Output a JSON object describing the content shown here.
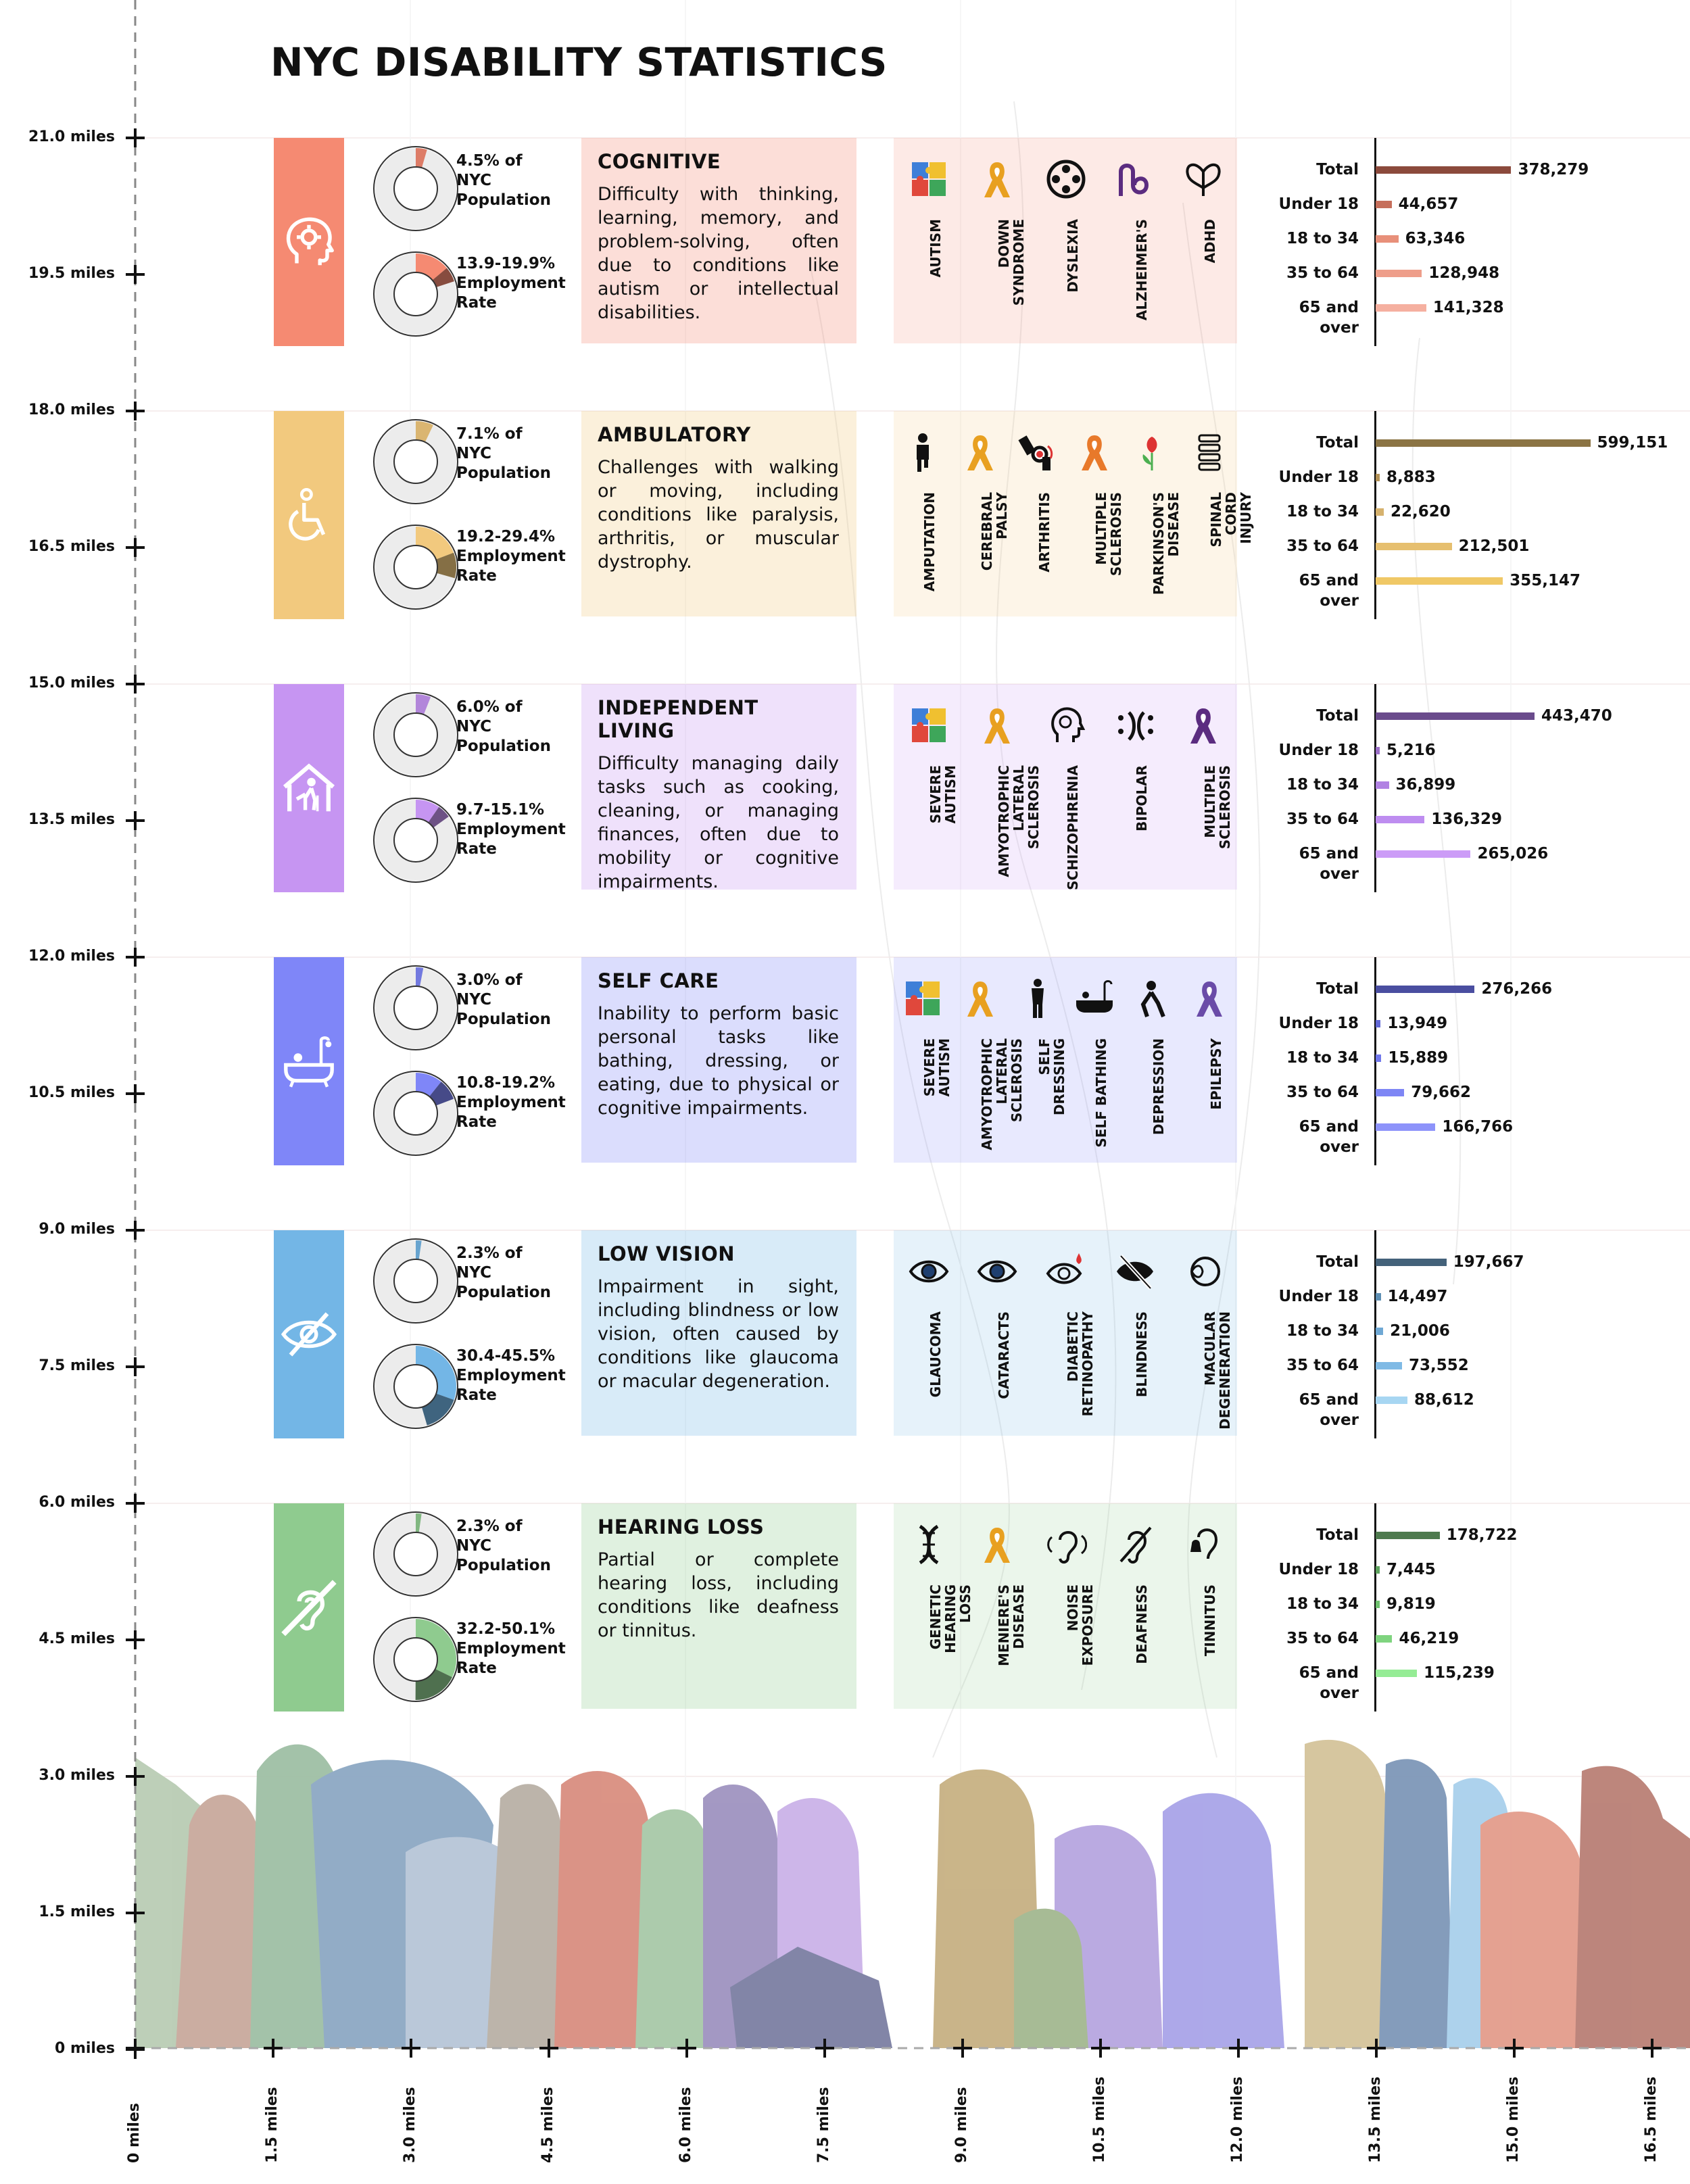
{
  "title": "NYC DISABILITY STATISTICS",
  "y_axis": [
    "21.0 miles",
    "19.5 miles",
    "18.0 miles",
    "16.5 miles",
    "15.0 miles",
    "13.5 miles",
    "12.0 miles",
    "10.5 miles",
    "9.0 miles",
    "7.5 miles",
    "6.0 miles",
    "4.5 miles",
    "3.0 miles",
    "1.5 miles",
    "0 miles"
  ],
  "x_axis": [
    "0 miles",
    "1.5 miles",
    "3.0 miles",
    "4.5 miles",
    "6.0 miles",
    "7.5 miles",
    "9.0 miles",
    "10.5 miles",
    "12.0 miles",
    "13.5 miles",
    "15.0 miles",
    "16.5 miles"
  ],
  "colors": {
    "cognitive": "#F58A72",
    "ambulatory": "#F2C97E",
    "independent": "#C695F2",
    "selfcare": "#7F86F8",
    "lowvision": "#73B6E6",
    "hearing": "#8FCB8F"
  },
  "chart_data": [
    {
      "type": "bar",
      "key": "cognitive",
      "title": "COGNITIVE",
      "description": "Difficulty with thinking, learning, memory, and problem-solving, often due to conditions like autism or intellectual disabilities.",
      "population_label": "4.5% of NYC Population",
      "population_pct": 4.5,
      "employment_label": "13.9-19.9% Employment Rate",
      "employment_range": [
        13.9,
        19.9
      ],
      "conditions": [
        {
          "icon": "puzzle-icon",
          "label": "AUTISM"
        },
        {
          "icon": "ribbon-icon",
          "label": "DOWN SYNDROME"
        },
        {
          "icon": "film-reel-icon",
          "label": "DYSLEXIA"
        },
        {
          "icon": "loops-icon",
          "label": "ALZHEIMER'S"
        },
        {
          "icon": "butterfly-icon",
          "label": "ADHD"
        }
      ],
      "categories": [
        "Total",
        "Under 18",
        "18 to 34",
        "35 to 64",
        "65 and over"
      ],
      "values": [
        378279,
        44657,
        63346,
        128948,
        141328
      ],
      "value_labels": [
        "378,279",
        "44,657",
        "63,346",
        "128,948",
        "141,328"
      ],
      "bar_colors": [
        "#8B4A3C",
        "#C66F5B",
        "#E8907A",
        "#EE9E8A",
        "#F5B0A0"
      ]
    },
    {
      "type": "bar",
      "key": "ambulatory",
      "title": "AMBULATORY",
      "description": "Challenges with walking or moving, including conditions like paralysis, arthritis, or muscular dystrophy.",
      "population_label": "7.1% of NYC Population",
      "population_pct": 7.1,
      "employment_label": "19.2-29.4% Employment Rate",
      "employment_range": [
        19.2,
        29.4
      ],
      "conditions": [
        {
          "icon": "person-icon",
          "label": "AMPUTATION"
        },
        {
          "icon": "ribbon-icon",
          "label": "CEREBRAL PALSY"
        },
        {
          "icon": "joint-icon",
          "label": "ARTHRITIS"
        },
        {
          "icon": "ribbon-icon",
          "label": "MULTIPLE SCLEROSIS"
        },
        {
          "icon": "tulip-icon",
          "label": "PARKINSON'S DISEASE"
        },
        {
          "icon": "spine-icon",
          "label": "SPINAL CORD INJURY"
        }
      ],
      "categories": [
        "Total",
        "Under 18",
        "18 to 34",
        "35 to 64",
        "65 and over"
      ],
      "values": [
        599151,
        8883,
        22620,
        212501,
        355147
      ],
      "value_labels": [
        "599,151",
        "8,883",
        "22,620",
        "212,501",
        "355,147"
      ],
      "bar_colors": [
        "#8B7444",
        "#B39257",
        "#D6B26E",
        "#E6BF6F",
        "#F0C866"
      ]
    },
    {
      "type": "bar",
      "key": "independent",
      "title": "INDEPENDENT LIVING",
      "description": "Difficulty managing daily tasks such as cooking, cleaning, or managing finances, often due to mobility or cognitive impairments.",
      "population_label": "6.0% of NYC Population",
      "population_pct": 6.0,
      "employment_label": "9.7-15.1% Employment Rate",
      "employment_range": [
        9.7,
        15.1
      ],
      "conditions": [
        {
          "icon": "puzzle-icon",
          "label": "SEVERE AUTISM"
        },
        {
          "icon": "ribbon-icon",
          "label": "AMYOTROPHIC LATERAL SCLEROSIS"
        },
        {
          "icon": "head-icon",
          "label": "SCHIZOPHRENIA"
        },
        {
          "icon": "faces-icon",
          "label": "BIPOLAR"
        },
        {
          "icon": "ribbon-icon",
          "label": "MULTIPLE SCLEROSIS"
        }
      ],
      "categories": [
        "Total",
        "Under 18",
        "18 to 34",
        "35 to 64",
        "65 and over"
      ],
      "values": [
        443470,
        5216,
        36899,
        136329,
        265026
      ],
      "value_labels": [
        "443,470",
        "5,216",
        "36,899",
        "136,329",
        "265,026"
      ],
      "bar_colors": [
        "#6A4B8C",
        "#9B6FC7",
        "#B182E3",
        "#BE8DF0",
        "#CC9CF7"
      ]
    },
    {
      "type": "bar",
      "key": "selfcare",
      "title": "SELF CARE",
      "description": "Inability to perform basic personal tasks like bathing, dressing, or eating, due to physical or cognitive impairments.",
      "population_label": "3.0% of NYC Population",
      "population_pct": 3.0,
      "employment_label": "10.8-19.2% Employment Rate",
      "employment_range": [
        10.8,
        19.2
      ],
      "conditions": [
        {
          "icon": "puzzle-icon",
          "label": "SEVERE AUTISM"
        },
        {
          "icon": "ribbon-icon",
          "label": "AMYOTROPHIC LATERAL SCLEROSIS"
        },
        {
          "icon": "dressing-icon",
          "label": "SELF DRESSING"
        },
        {
          "icon": "bathtub-icon",
          "label": "SELF BATHING"
        },
        {
          "icon": "sad-person-icon",
          "label": "DEPRESSION"
        },
        {
          "icon": "ribbon-icon",
          "label": "EPILEPSY"
        }
      ],
      "categories": [
        "Total",
        "Under 18",
        "18 to 34",
        "35 to 64",
        "65 and over"
      ],
      "values": [
        276266,
        13949,
        15889,
        79662,
        166766
      ],
      "value_labels": [
        "276,266",
        "13,949",
        "15,889",
        "79,662",
        "166,766"
      ],
      "bar_colors": [
        "#4A4EA0",
        "#6369D6",
        "#7178EB",
        "#7E86F5",
        "#8D93FA"
      ]
    },
    {
      "type": "bar",
      "key": "lowvision",
      "title": "LOW VISION",
      "description": "Impairment in sight, including blindness or low vision, often caused by conditions like glaucoma or macular degeneration.",
      "population_label": "2.3% of NYC Population",
      "population_pct": 2.3,
      "employment_label": "30.4-45.5% Employment Rate",
      "employment_range": [
        30.4,
        45.5
      ],
      "conditions": [
        {
          "icon": "eye-icon",
          "label": "GLAUCOMA"
        },
        {
          "icon": "eye-icon",
          "label": "CATARACTS"
        },
        {
          "icon": "eye-drop-icon",
          "label": "DIABETIC RETINOPATHY"
        },
        {
          "icon": "eye-slash-icon",
          "label": "BLINDNESS"
        },
        {
          "icon": "eyeball-icon",
          "label": "MACULAR DEGENERATION"
        }
      ],
      "categories": [
        "Total",
        "Under 18",
        "18 to 34",
        "35 to 64",
        "65 and over"
      ],
      "values": [
        197667,
        14497,
        21006,
        73552,
        88612
      ],
      "value_labels": [
        "197,667",
        "14,497",
        "21,006",
        "73,552",
        "88,612"
      ],
      "bar_colors": [
        "#44627A",
        "#5E8FB3",
        "#6FA8D4",
        "#7FBAE5",
        "#A7D6F2"
      ]
    },
    {
      "type": "bar",
      "key": "hearing",
      "title": "HEARING LOSS",
      "description": "Partial or complete hearing loss, including conditions like deafness or tinnitus.",
      "population_label": "2.3% of NYC Population",
      "population_pct": 2.3,
      "employment_label": "32.2-50.1% Employment Rate",
      "employment_range": [
        32.2,
        50.1
      ],
      "conditions": [
        {
          "icon": "dna-icon",
          "label": "GENETIC HEARING LOSS"
        },
        {
          "icon": "ribbon-icon",
          "label": "MENIERE'S DISEASE"
        },
        {
          "icon": "ear-waves-icon",
          "label": "NOISE EXPOSURE"
        },
        {
          "icon": "ear-slash-icon",
          "label": "DEAFNESS"
        },
        {
          "icon": "ear-bell-icon",
          "label": "TINNITUS"
        }
      ],
      "categories": [
        "Total",
        "Under 18",
        "18 to 34",
        "35 to 64",
        "65 and over"
      ],
      "values": [
        178722,
        7445,
        9819,
        46219,
        115239
      ],
      "value_labels": [
        "178,722",
        "7,445",
        "9,819",
        "46,219",
        "115,239"
      ],
      "bar_colors": [
        "#4E7A4E",
        "#5FA35F",
        "#6FC26F",
        "#7FD47F",
        "#95EC95"
      ]
    }
  ]
}
